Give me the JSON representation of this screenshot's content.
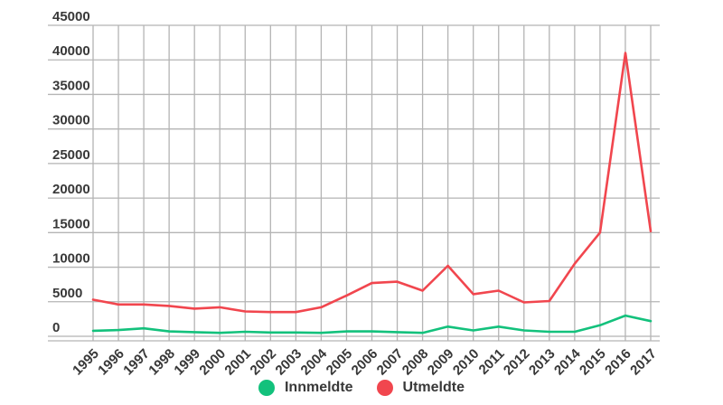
{
  "chart_data": {
    "type": "line",
    "title": "",
    "xlabel": "",
    "ylabel": "",
    "x": [
      "1995",
      "1996",
      "1997",
      "1998",
      "1999",
      "2000",
      "2001",
      "2002",
      "2003",
      "2004",
      "2005",
      "2006",
      "2007",
      "2008",
      "2009",
      "2010",
      "2011",
      "2012",
      "2013",
      "2014",
      "2015",
      "2016",
      "2017"
    ],
    "series": [
      {
        "name": "Innmeldte",
        "color": "#13c17c",
        "values": [
          800,
          900,
          1150,
          700,
          600,
          500,
          650,
          550,
          550,
          500,
          700,
          700,
          600,
          500,
          1400,
          850,
          1400,
          850,
          650,
          650,
          1600,
          3000,
          2200
        ]
      },
      {
        "name": "Utmeldte",
        "color": "#f1464e",
        "values": [
          5300,
          4600,
          4600,
          4400,
          4000,
          4200,
          3600,
          3500,
          3500,
          4200,
          5900,
          7700,
          7900,
          6600,
          10200,
          6100,
          6600,
          4900,
          5100,
          10500,
          15000,
          41000,
          15200
        ]
      }
    ],
    "ylim": [
      0,
      45000
    ],
    "ytick_step": 5000,
    "ytick_labels": [
      "0",
      "5000",
      "10000",
      "15000",
      "20000",
      "25000",
      "30000",
      "35000",
      "40000",
      "45000"
    ],
    "grid": "both",
    "grid_color": "#b4b4b4",
    "text_color": "#383838",
    "legend_position": "bottom-center"
  }
}
